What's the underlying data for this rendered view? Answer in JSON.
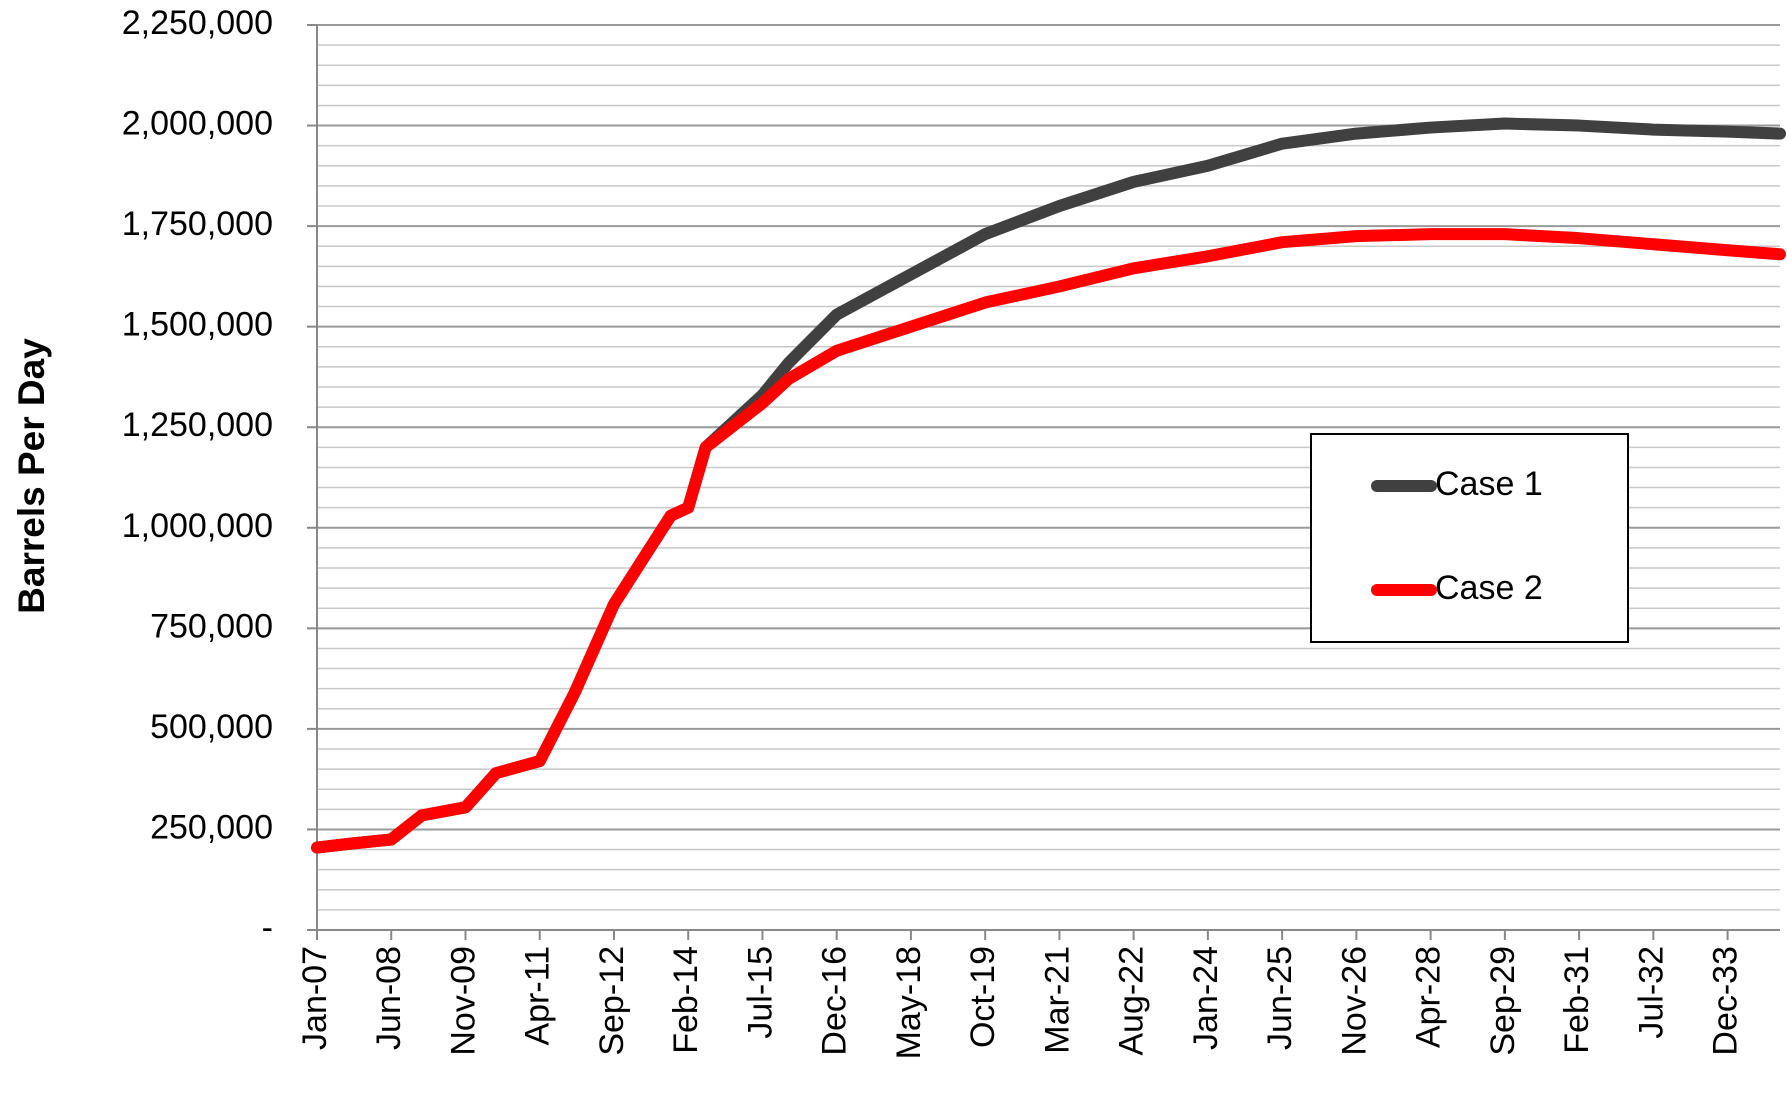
{
  "chart_data": {
    "type": "line",
    "y_label": "Barrels Per Day",
    "x": [
      "Jan-07",
      "Sep-07",
      "Jun-08",
      "Jan-09",
      "Nov-09",
      "Jun-10",
      "Apr-11",
      "Dec-11",
      "Sep-12",
      "Oct-13",
      "Feb-14",
      "Jun-14",
      "Jul-15",
      "Jan-16",
      "Dec-16",
      "May-18",
      "Oct-19",
      "Mar-21",
      "Aug-22",
      "Jan-24",
      "Jun-25",
      "Nov-26",
      "Apr-28",
      "Sep-29",
      "Feb-31",
      "Jul-32",
      "Dec-33",
      "Dec-34"
    ],
    "series": [
      {
        "name": "Case 1",
        "color": "#404040",
        "values": [
          205000,
          215000,
          225000,
          285000,
          305000,
          390000,
          420000,
          590000,
          810000,
          1030000,
          1050000,
          1200000,
          1330000,
          1410000,
          1530000,
          1630000,
          1730000,
          1800000,
          1860000,
          1900000,
          1955000,
          1980000,
          1995000,
          2005000,
          2000000,
          1990000,
          1985000,
          1980000
        ]
      },
      {
        "name": "Case 2",
        "color": "#ff0000",
        "values": [
          205000,
          215000,
          225000,
          285000,
          305000,
          390000,
          420000,
          590000,
          810000,
          1030000,
          1050000,
          1200000,
          1310000,
          1370000,
          1440000,
          1500000,
          1560000,
          1600000,
          1645000,
          1675000,
          1710000,
          1725000,
          1730000,
          1730000,
          1720000,
          1705000,
          1690000,
          1680000
        ]
      }
    ],
    "xlim": [
      "Jan-07",
      "Dec-34"
    ],
    "xticks": [
      "Jan-07",
      "Jun-08",
      "Nov-09",
      "Apr-11",
      "Sep-12",
      "Feb-14",
      "Jul-15",
      "Dec-16",
      "May-18",
      "Oct-19",
      "Mar-21",
      "Aug-22",
      "Jan-24",
      "Jun-25",
      "Nov-26",
      "Apr-28",
      "Sep-29",
      "Feb-31",
      "Jul-32",
      "Dec-33"
    ],
    "ylim": [
      0,
      2250000
    ],
    "yticks": [
      {
        "value": 0,
        "label": "-"
      },
      {
        "value": 250000,
        "label": "250,000"
      },
      {
        "value": 500000,
        "label": "500,000"
      },
      {
        "value": 750000,
        "label": "750,000"
      },
      {
        "value": 1000000,
        "label": "1,000,000"
      },
      {
        "value": 1250000,
        "label": "1,250,000"
      },
      {
        "value": 1500000,
        "label": "1,500,000"
      },
      {
        "value": 1750000,
        "label": "1,750,000"
      },
      {
        "value": 2000000,
        "label": "2,000,000"
      },
      {
        "value": 2250000,
        "label": "2,250,000"
      }
    ],
    "minor_yticks": [
      50000,
      100000,
      150000,
      200000,
      300000,
      350000,
      400000,
      450000,
      550000,
      600000,
      650000,
      700000,
      800000,
      850000,
      900000,
      950000,
      1050000,
      1100000,
      1150000,
      1200000,
      1300000,
      1350000,
      1400000,
      1450000,
      1550000,
      1600000,
      1650000,
      1700000,
      1800000,
      1850000,
      1900000,
      1950000,
      2050000,
      2100000,
      2150000,
      2200000
    ],
    "grid": true,
    "legend": "right"
  }
}
